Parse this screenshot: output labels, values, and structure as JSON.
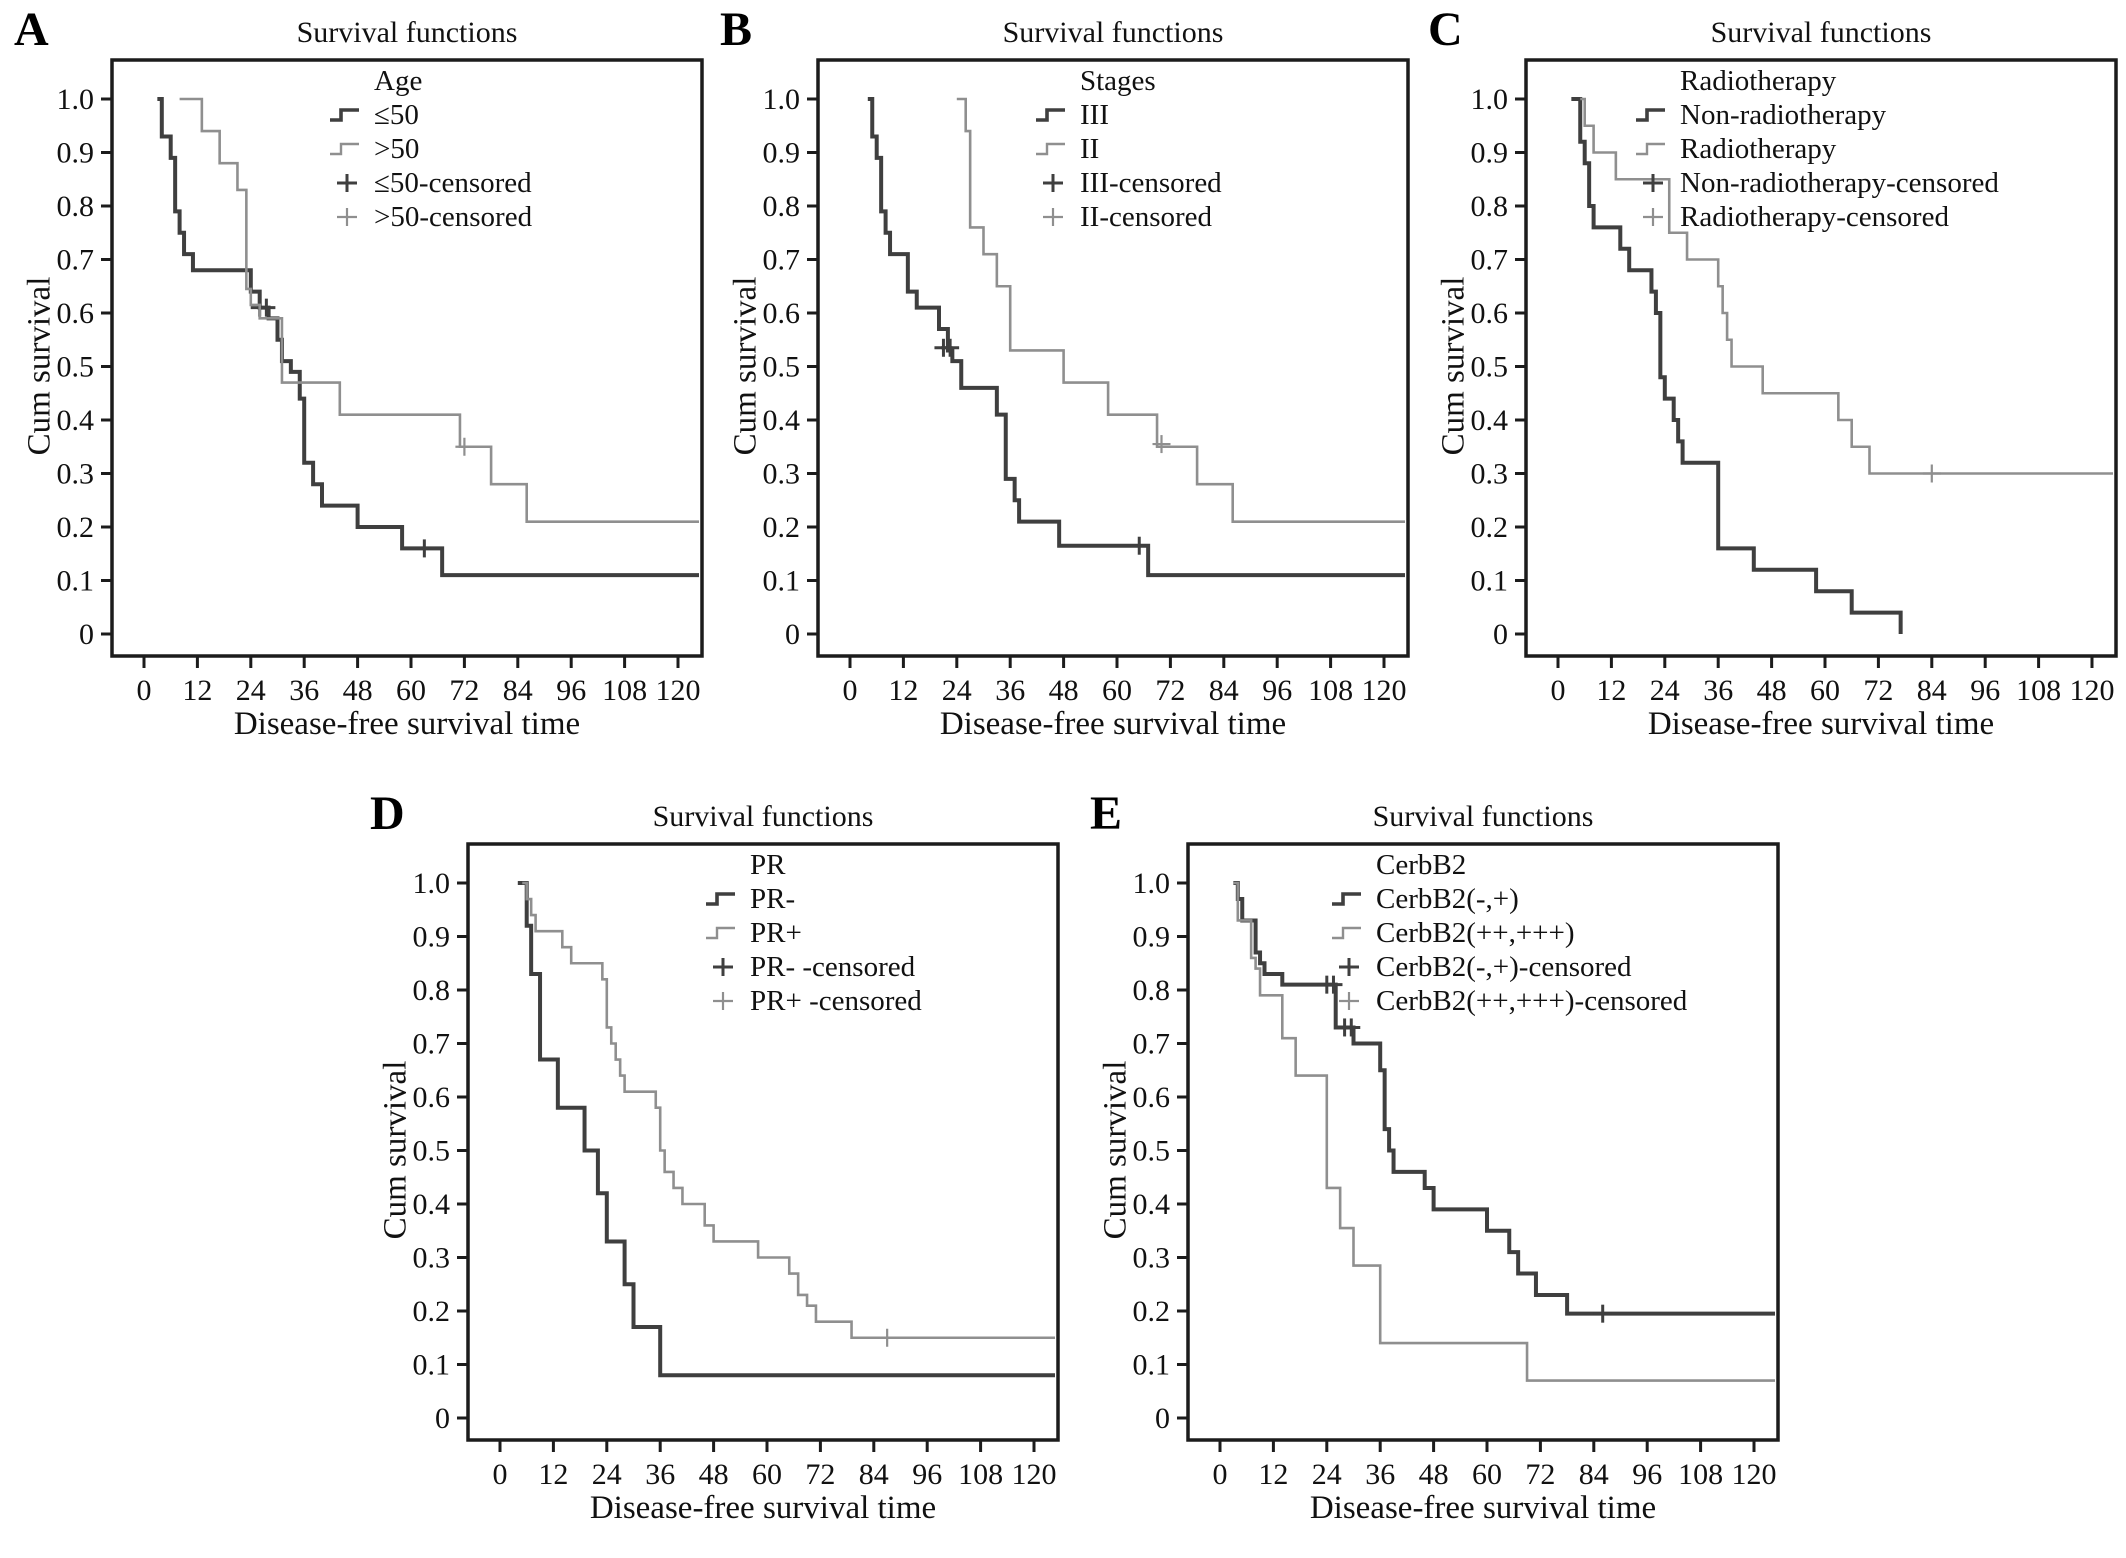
{
  "colors": {
    "series1": "#3f3f3f",
    "series2": "#8f8f8f",
    "axis": "#1c1c1c",
    "text": "#111111"
  },
  "chart_data": [
    {
      "panel": "A",
      "type": "line",
      "subtype": "kaplan-meier-step",
      "title": "Survival functions",
      "group_label": "Age",
      "xlabel": "Disease-free survival time",
      "ylabel": "Cum survival",
      "xlim": [
        0,
        125
      ],
      "ylim": [
        0,
        1.0
      ],
      "xticks": [
        0,
        12,
        24,
        36,
        48,
        60,
        72,
        84,
        96,
        108,
        120
      ],
      "ytick_labels": [
        "1.0",
        "0.9",
        "0.8",
        "0.7",
        "0.6",
        "0.5",
        "0.4",
        "0.3",
        "0.2",
        "0.1",
        "0"
      ],
      "legend_position": "top-right-inside",
      "series": [
        {
          "name": "≤50",
          "censored_name": "≤50-censored",
          "color": "dark",
          "points": [
            [
              3,
              1.0
            ],
            [
              4,
              0.93
            ],
            [
              6,
              0.89
            ],
            [
              7,
              0.79
            ],
            [
              8,
              0.75
            ],
            [
              9,
              0.71
            ],
            [
              11,
              0.68
            ],
            [
              24,
              0.64
            ],
            [
              26,
              0.61
            ],
            [
              28,
              0.59
            ],
            [
              30,
              0.55
            ],
            [
              31,
              0.51
            ],
            [
              33,
              0.49
            ],
            [
              35,
              0.44
            ],
            [
              36,
              0.32
            ],
            [
              38,
              0.28
            ],
            [
              40,
              0.24
            ],
            [
              48,
              0.2
            ],
            [
              58,
              0.16
            ],
            [
              67,
              0.11
            ],
            [
              125,
              0.11
            ]
          ],
          "censor_marks": [
            [
              26,
              0.61
            ],
            [
              27.5,
              0.61
            ],
            [
              63,
              0.16
            ]
          ]
        },
        {
          "name": ">50",
          "censored_name": ">50-censored",
          "color": "light",
          "points": [
            [
              8,
              1.0
            ],
            [
              13,
              0.94
            ],
            [
              17,
              0.88
            ],
            [
              21,
              0.83
            ],
            [
              23,
              0.645
            ],
            [
              24,
              0.615
            ],
            [
              26,
              0.59
            ],
            [
              31,
              0.47
            ],
            [
              44,
              0.41
            ],
            [
              71,
              0.35
            ],
            [
              78,
              0.28
            ],
            [
              86,
              0.21
            ],
            [
              125,
              0.21
            ]
          ],
          "censor_marks": [
            [
              72,
              0.35
            ]
          ]
        }
      ]
    },
    {
      "panel": "B",
      "type": "line",
      "subtype": "kaplan-meier-step",
      "title": "Survival functions",
      "group_label": "Stages",
      "xlabel": "Disease-free survival time",
      "ylabel": "Cum survival",
      "xlim": [
        0,
        125
      ],
      "ylim": [
        0,
        1.0
      ],
      "xticks": [
        0,
        12,
        24,
        36,
        48,
        60,
        72,
        84,
        96,
        108,
        120
      ],
      "ytick_labels": [
        "1.0",
        "0.9",
        "0.8",
        "0.7",
        "0.6",
        "0.5",
        "0.4",
        "0.3",
        "0.2",
        "0.1",
        "0"
      ],
      "legend_position": "top-right-inside",
      "series": [
        {
          "name": "III",
          "censored_name": "III-censored",
          "color": "dark",
          "points": [
            [
              4,
              1.0
            ],
            [
              5,
              0.93
            ],
            [
              6,
              0.89
            ],
            [
              7,
              0.79
            ],
            [
              8,
              0.75
            ],
            [
              9,
              0.71
            ],
            [
              13,
              0.64
            ],
            [
              15,
              0.61
            ],
            [
              20,
              0.57
            ],
            [
              22,
              0.53
            ],
            [
              23,
              0.51
            ],
            [
              25,
              0.46
            ],
            [
              33,
              0.41
            ],
            [
              35,
              0.29
            ],
            [
              37,
              0.25
            ],
            [
              38,
              0.21
            ],
            [
              47,
              0.165
            ],
            [
              67,
              0.11
            ],
            [
              125,
              0.11
            ]
          ],
          "censor_marks": [
            [
              21,
              0.535
            ],
            [
              22.5,
              0.535
            ],
            [
              65,
              0.165
            ]
          ]
        },
        {
          "name": "II",
          "censored_name": "II-censored",
          "color": "light",
          "points": [
            [
              24,
              1.0
            ],
            [
              26,
              0.94
            ],
            [
              27,
              0.76
            ],
            [
              30,
              0.71
            ],
            [
              33,
              0.65
            ],
            [
              36,
              0.53
            ],
            [
              48,
              0.47
            ],
            [
              58,
              0.41
            ],
            [
              69,
              0.35
            ],
            [
              78,
              0.28
            ],
            [
              86,
              0.21
            ],
            [
              125,
              0.21
            ]
          ],
          "censor_marks": [
            [
              70,
              0.355
            ]
          ]
        }
      ]
    },
    {
      "panel": "C",
      "type": "line",
      "subtype": "kaplan-meier-step",
      "title": "Survival functions",
      "group_label": "Radiotherapy",
      "xlabel": "Disease-free survival time",
      "ylabel": "Cum survival",
      "xlim": [
        0,
        125
      ],
      "ylim": [
        0,
        1.0
      ],
      "xticks": [
        0,
        12,
        24,
        36,
        48,
        60,
        72,
        84,
        96,
        108,
        120
      ],
      "ytick_labels": [
        "1.0",
        "0.9",
        "0.8",
        "0.7",
        "0.6",
        "0.5",
        "0.4",
        "0.3",
        "0.2",
        "0.1",
        "0"
      ],
      "legend_position": "top-right-inside",
      "series": [
        {
          "name": "Non-radiotherapy",
          "censored_name": "Non-radiotherapy-censored",
          "color": "dark",
          "points": [
            [
              3,
              1.0
            ],
            [
              5,
              0.92
            ],
            [
              6,
              0.88
            ],
            [
              7,
              0.8
            ],
            [
              8,
              0.76
            ],
            [
              14,
              0.72
            ],
            [
              16,
              0.68
            ],
            [
              21,
              0.64
            ],
            [
              22,
              0.6
            ],
            [
              23,
              0.48
            ],
            [
              24,
              0.44
            ],
            [
              26,
              0.4
            ],
            [
              27,
              0.36
            ],
            [
              28,
              0.32
            ],
            [
              36,
              0.16
            ],
            [
              44,
              0.12
            ],
            [
              58,
              0.08
            ],
            [
              66,
              0.04
            ],
            [
              77,
              0.0
            ]
          ],
          "censor_marks": []
        },
        {
          "name": "Radiotherapy",
          "censored_name": "Radiotherapy-censored",
          "color": "light",
          "points": [
            [
              5,
              1.0
            ],
            [
              6,
              0.95
            ],
            [
              8,
              0.9
            ],
            [
              13,
              0.85
            ],
            [
              25,
              0.75
            ],
            [
              29,
              0.7
            ],
            [
              36,
              0.65
            ],
            [
              37,
              0.6
            ],
            [
              38,
              0.55
            ],
            [
              39,
              0.5
            ],
            [
              46,
              0.45
            ],
            [
              63,
              0.4
            ],
            [
              66,
              0.35
            ],
            [
              70,
              0.3
            ],
            [
              125,
              0.3
            ]
          ],
          "censor_marks": [
            [
              84,
              0.3
            ]
          ]
        }
      ]
    },
    {
      "panel": "D",
      "type": "line",
      "subtype": "kaplan-meier-step",
      "title": "Survival functions",
      "group_label": "PR",
      "xlabel": "Disease-free survival time",
      "ylabel": "Cum survival",
      "xlim": [
        0,
        125
      ],
      "ylim": [
        0,
        1.0
      ],
      "xticks": [
        0,
        12,
        24,
        36,
        48,
        60,
        72,
        84,
        96,
        108,
        120
      ],
      "ytick_labels": [
        "1.0",
        "0.9",
        "0.8",
        "0.7",
        "0.6",
        "0.5",
        "0.4",
        "0.3",
        "0.2",
        "0.1",
        "0"
      ],
      "legend_position": "top-right-inside",
      "series": [
        {
          "name": "PR-",
          "censored_name": "PR-  -censored",
          "color": "dark",
          "points": [
            [
              4,
              1.0
            ],
            [
              6,
              0.92
            ],
            [
              7,
              0.83
            ],
            [
              9,
              0.67
            ],
            [
              13,
              0.58
            ],
            [
              19,
              0.5
            ],
            [
              22,
              0.42
            ],
            [
              24,
              0.33
            ],
            [
              28,
              0.25
            ],
            [
              30,
              0.17
            ],
            [
              36,
              0.08
            ],
            [
              125,
              0.08
            ]
          ],
          "censor_marks": []
        },
        {
          "name": "PR+",
          "censored_name": "PR+ -censored",
          "color": "light",
          "points": [
            [
              5,
              1.0
            ],
            [
              6,
              0.97
            ],
            [
              7,
              0.94
            ],
            [
              8,
              0.91
            ],
            [
              14,
              0.88
            ],
            [
              16,
              0.85
            ],
            [
              23,
              0.82
            ],
            [
              24,
              0.73
            ],
            [
              25,
              0.7
            ],
            [
              26,
              0.67
            ],
            [
              27,
              0.64
            ],
            [
              28,
              0.61
            ],
            [
              35,
              0.58
            ],
            [
              36,
              0.5
            ],
            [
              37,
              0.46
            ],
            [
              39,
              0.43
            ],
            [
              41,
              0.4
            ],
            [
              46,
              0.36
            ],
            [
              48,
              0.33
            ],
            [
              58,
              0.3
            ],
            [
              65,
              0.27
            ],
            [
              67,
              0.23
            ],
            [
              69,
              0.21
            ],
            [
              71,
              0.18
            ],
            [
              79,
              0.15
            ],
            [
              125,
              0.15
            ]
          ],
          "censor_marks": [
            [
              87,
              0.15
            ]
          ]
        }
      ]
    },
    {
      "panel": "E",
      "type": "line",
      "subtype": "kaplan-meier-step",
      "title": "Survival functions",
      "group_label": "CerbB2",
      "xlabel": "Disease-free survival time",
      "ylabel": "Cum survival",
      "xlim": [
        0,
        125
      ],
      "ylim": [
        0,
        1.0
      ],
      "xticks": [
        0,
        12,
        24,
        36,
        48,
        60,
        72,
        84,
        96,
        108,
        120
      ],
      "ytick_labels": [
        "1.0",
        "0.9",
        "0.8",
        "0.7",
        "0.6",
        "0.5",
        "0.4",
        "0.3",
        "0.2",
        "0.1",
        "0"
      ],
      "legend_position": "top-right-inside",
      "series": [
        {
          "name": "CerbB2(-,+)",
          "censored_name": "CerbB2(-,+)-censored",
          "color": "dark",
          "points": [
            [
              3,
              1.0
            ],
            [
              4,
              0.97
            ],
            [
              5,
              0.93
            ],
            [
              8,
              0.87
            ],
            [
              9,
              0.85
            ],
            [
              10,
              0.83
            ],
            [
              14,
              0.81
            ],
            [
              26,
              0.73
            ],
            [
              30,
              0.7
            ],
            [
              36,
              0.65
            ],
            [
              37,
              0.54
            ],
            [
              38,
              0.5
            ],
            [
              39,
              0.46
            ],
            [
              46,
              0.43
            ],
            [
              48,
              0.39
            ],
            [
              60,
              0.35
            ],
            [
              65,
              0.31
            ],
            [
              67,
              0.27
            ],
            [
              71,
              0.23
            ],
            [
              78,
              0.195
            ],
            [
              125,
              0.195
            ]
          ],
          "censor_marks": [
            [
              24,
              0.81
            ],
            [
              25.5,
              0.81
            ],
            [
              28,
              0.73
            ],
            [
              29.5,
              0.73
            ],
            [
              86,
              0.195
            ]
          ]
        },
        {
          "name": "CerbB2(++,+++)",
          "censored_name": "CerbB2(++,+++)-censored",
          "color": "light",
          "points": [
            [
              3,
              1.0
            ],
            [
              4,
              0.93
            ],
            [
              7,
              0.86
            ],
            [
              8,
              0.84
            ],
            [
              9,
              0.79
            ],
            [
              14,
              0.71
            ],
            [
              17,
              0.64
            ],
            [
              24,
              0.43
            ],
            [
              27,
              0.355
            ],
            [
              30,
              0.285
            ],
            [
              36,
              0.14
            ],
            [
              69,
              0.07
            ],
            [
              125,
              0.07
            ]
          ],
          "censor_marks": []
        }
      ]
    }
  ]
}
